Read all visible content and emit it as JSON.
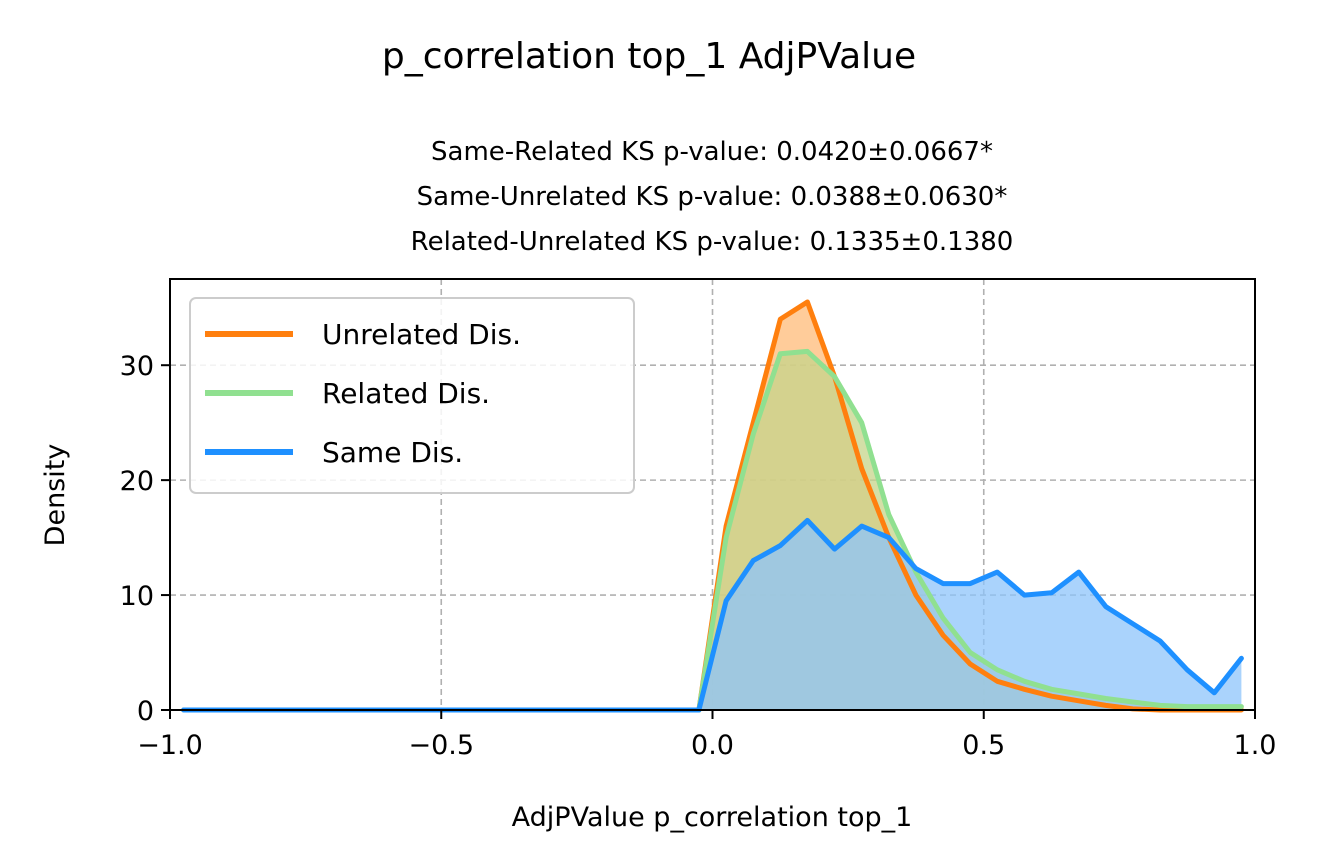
{
  "chart_data": {
    "type": "area",
    "suptitle": "p_correlation top_1 AdjPValue",
    "title_lines": [
      "Same-Related KS p-value: 0.0420±0.0667*",
      "Same-Unrelated KS p-value: 0.0388±0.0630*",
      "Related-Unrelated KS p-value: 0.1335±0.1380"
    ],
    "xlabel": "AdjPValue p_correlation top_1",
    "ylabel": "Density",
    "xlim": [
      -1.0,
      1.0
    ],
    "ylim": [
      0,
      37.5
    ],
    "xticks": [
      -1.0,
      -0.5,
      0.0,
      0.5,
      1.0
    ],
    "xtick_labels": [
      "−1.0",
      "−0.5",
      "0.0",
      "0.5",
      "1.0"
    ],
    "yticks": [
      0,
      10,
      20,
      30
    ],
    "ytick_labels": [
      "0",
      "10",
      "20",
      "30"
    ],
    "grid": true,
    "legend_position": "top-left",
    "series": [
      {
        "name": "Unrelated Dis.",
        "color": "#ff7f0e",
        "fill": "#ffbb78",
        "x": [
          -0.975,
          -0.025,
          0.025,
          0.075,
          0.125,
          0.175,
          0.225,
          0.275,
          0.325,
          0.375,
          0.425,
          0.475,
          0.525,
          0.575,
          0.625,
          0.675,
          0.725,
          0.775,
          0.825,
          0.875,
          0.925,
          0.975
        ],
        "values": [
          0,
          0,
          16,
          25,
          34,
          35.5,
          29,
          21,
          15,
          10,
          6.5,
          4,
          2.5,
          1.8,
          1.2,
          0.8,
          0.4,
          0.1,
          0,
          0,
          0,
          0
        ]
      },
      {
        "name": "Related Dis.",
        "color": "#90e090",
        "fill": "#c5d48a",
        "x": [
          -0.975,
          -0.025,
          0.025,
          0.075,
          0.125,
          0.175,
          0.225,
          0.275,
          0.325,
          0.375,
          0.425,
          0.475,
          0.525,
          0.575,
          0.625,
          0.675,
          0.725,
          0.775,
          0.825,
          0.875,
          0.925,
          0.975
        ],
        "values": [
          0,
          0,
          15,
          24,
          31,
          31.2,
          29,
          25,
          17,
          12,
          8,
          5,
          3.5,
          2.5,
          1.8,
          1.4,
          1,
          0.7,
          0.4,
          0.3,
          0.3,
          0.3
        ]
      },
      {
        "name": "Same Dis.",
        "color": "#1e90ff",
        "fill": "#8ec4fb",
        "x": [
          -0.975,
          -0.025,
          0.025,
          0.075,
          0.125,
          0.175,
          0.225,
          0.275,
          0.325,
          0.375,
          0.425,
          0.475,
          0.525,
          0.575,
          0.625,
          0.675,
          0.725,
          0.775,
          0.825,
          0.875,
          0.925,
          0.975
        ],
        "values": [
          0,
          0,
          9.5,
          13,
          14.3,
          16.5,
          14,
          16,
          15,
          12.3,
          11,
          11,
          12,
          10,
          10.2,
          12,
          9,
          7.5,
          6,
          3.5,
          1.5,
          4.5
        ]
      }
    ]
  }
}
